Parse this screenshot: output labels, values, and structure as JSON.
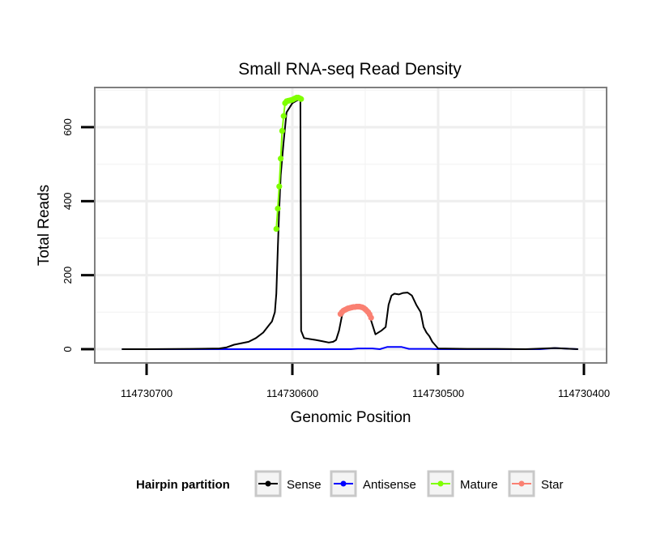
{
  "chart_data": {
    "type": "line",
    "title": "Small RNA-seq Read Density",
    "xlabel": "Genomic Position",
    "ylabel": "Total Reads",
    "x_reversed": true,
    "xlim": [
      114730735,
      114730385
    ],
    "ylim": [
      -35,
      705
    ],
    "x_ticks": [
      114730700,
      114730600,
      114730500,
      114730400
    ],
    "x_tick_labels": [
      "114730700",
      "114730600",
      "114730500",
      "114730400"
    ],
    "y_ticks": [
      0,
      200,
      400,
      600
    ],
    "y_tick_labels": [
      "0",
      "200",
      "400",
      "600"
    ],
    "legend": {
      "title": "Hairpin partition",
      "placement": "bottom",
      "entries": [
        "Sense",
        "Antisense",
        "Mature",
        "Star"
      ]
    },
    "colors": {
      "Sense": "#000000",
      "Antisense": "#0000ff",
      "Mature": "#7fff00",
      "Star": "#fa8072"
    },
    "series": [
      {
        "name": "Sense",
        "style": "line",
        "x": [
          114730717,
          114730700,
          114730670,
          114730650,
          114730645,
          114730640,
          114730630,
          114730625,
          114730620,
          114730618,
          114730616,
          114730614,
          114730612,
          114730611,
          114730610,
          114730609,
          114730608,
          114730606,
          114730604,
          114730600,
          114730597,
          114730595,
          114730594.5,
          114730594,
          114730592,
          114730589,
          114730584,
          114730580,
          114730575,
          114730572,
          114730570,
          114730568,
          114730566,
          114730564,
          114730562,
          114730561,
          114730559,
          114730557,
          114730555,
          114730553,
          114730551,
          114730549,
          114730547,
          114730545,
          114730543,
          114730539,
          114730536,
          114730534,
          114730532,
          114730530,
          114730527,
          114730524,
          114730521,
          114730518,
          114730515,
          114730512,
          114730510,
          114730508,
          114730506,
          114730504,
          114730500,
          114730480,
          114730460,
          114730440,
          114730420,
          114730404
        ],
        "y": [
          0,
          0,
          1,
          2,
          5,
          12,
          20,
          30,
          45,
          55,
          65,
          75,
          100,
          150,
          270,
          380,
          470,
          560,
          640,
          665,
          672,
          675,
          680,
          50,
          30,
          28,
          25,
          22,
          18,
          20,
          25,
          50,
          90,
          105,
          110,
          112,
          114,
          115,
          116,
          115,
          112,
          105,
          90,
          65,
          40,
          50,
          60,
          120,
          145,
          150,
          148,
          152,
          153,
          145,
          120,
          100,
          60,
          45,
          35,
          20,
          2,
          1,
          1,
          0,
          3,
          0
        ]
      },
      {
        "name": "Antisense",
        "style": "line",
        "x": [
          114730717,
          114730650,
          114730600,
          114730560,
          114730555,
          114730545,
          114730540,
          114730535,
          114730525,
          114730520,
          114730505,
          114730500,
          114730480,
          114730430,
          114730420,
          114730404
        ],
        "y": [
          0,
          0,
          0,
          0,
          2,
          2,
          0,
          6,
          6,
          1,
          1,
          0,
          0,
          0,
          3,
          0
        ]
      },
      {
        "name": "Mature",
        "style": "points",
        "x": [
          114730611,
          114730610,
          114730609,
          114730608,
          114730607,
          114730606,
          114730605,
          114730604,
          114730603,
          114730602,
          114730601,
          114730600,
          114730599,
          114730598,
          114730597,
          114730596,
          114730595,
          114730594
        ],
        "y": [
          325,
          380,
          440,
          515,
          590,
          630,
          665,
          670,
          671,
          672,
          673,
          674,
          676,
          678,
          680,
          680,
          678,
          676
        ]
      },
      {
        "name": "Star",
        "style": "points",
        "x": [
          114730567,
          114730566,
          114730565,
          114730564,
          114730563,
          114730562,
          114730561,
          114730560,
          114730559,
          114730558,
          114730557,
          114730556,
          114730555,
          114730554,
          114730553,
          114730552,
          114730551,
          114730550,
          114730549,
          114730548,
          114730547,
          114730546
        ],
        "y": [
          95,
          100,
          104,
          106,
          108,
          110,
          111,
          112,
          113,
          114,
          114,
          115,
          115,
          115,
          114,
          113,
          111,
          108,
          104,
          100,
          94,
          85
        ]
      }
    ]
  }
}
